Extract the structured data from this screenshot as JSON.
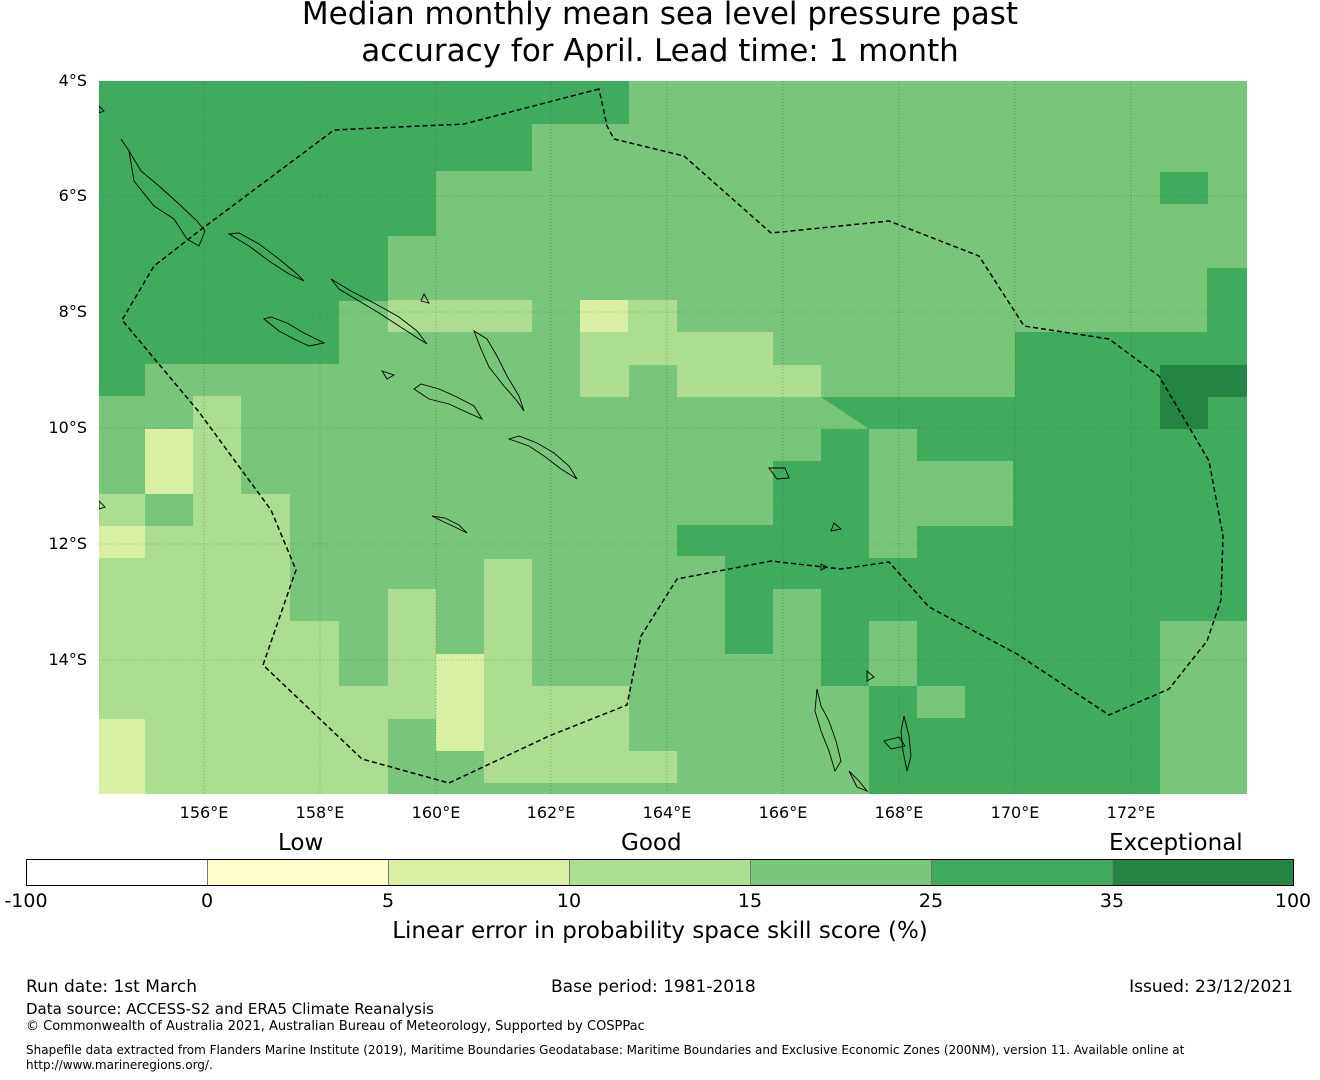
{
  "title": {
    "line1": "Median monthly mean sea level pressure past",
    "line2": "accuracy for April. Lead time: 1 month"
  },
  "map": {
    "lat_labels": [
      "4°S",
      "6°S",
      "8°S",
      "10°S",
      "12°S",
      "14°S"
    ],
    "lon_labels": [
      "156°E",
      "158°E",
      "160°E",
      "162°E",
      "164°E",
      "166°E",
      "168°E",
      "170°E",
      "172°E"
    ],
    "palette": {
      "c0": "#ffffcc",
      "c1": "#d9f0a3",
      "c2": "#addd8e",
      "c3": "#78c679",
      "c4": "#41ab5d",
      "c5": "#238443"
    },
    "boundary_line": "dashed",
    "grid": "on"
  },
  "legend": {
    "categories": [
      "Low",
      "Good",
      "Exceptional"
    ],
    "colors": [
      "#ffffff",
      "#ffffcc",
      "#d9f0a3",
      "#addd8e",
      "#78c679",
      "#41ab5d",
      "#238443"
    ],
    "ticks": [
      "-100",
      "0",
      "5",
      "10",
      "15",
      "25",
      "35",
      "100"
    ],
    "label": "Linear error in probability space skill score (%)"
  },
  "footer": {
    "run_date": "Run date: 1st March",
    "base_period": "Base period: 1981-2018",
    "issued": "Issued: 23/12/2021",
    "data_source": "Data source: ACCESS-S2 and ERA5 Climate Reanalysis",
    "copyright": "© Commonwealth of Australia 2021, Australian Bureau of Meteorology, Supported by COSPPac",
    "shapefile": "Shapefile data extracted from Flanders Marine Institute (2019), Maritime Boundaries Geodatabase: Maritime Boundaries and Exclusive Economic Zones (200NM), version 11. Available online at http://www.marineregions.org/."
  }
}
